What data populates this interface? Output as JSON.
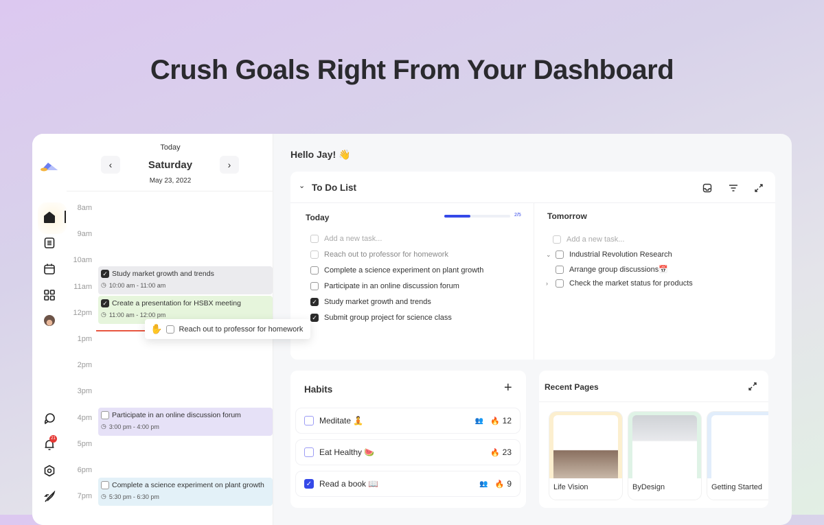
{
  "headline": "Crush Goals Right From Your Dashboard",
  "colors": {
    "accent": "#3549e8",
    "now_line": "#e8553e",
    "badge": "#e53935"
  },
  "sidebar": {
    "icons": [
      "logo",
      "home-icon",
      "document-icon",
      "calendar-icon",
      "grid-icon",
      "avatar",
      "chat-icon",
      "bell-icon",
      "gear-icon",
      "rocket-icon"
    ],
    "notification_count": "21"
  },
  "calendar": {
    "today_label": "Today",
    "day": "Saturday",
    "date": "May 23, 2022",
    "hours": [
      "8am",
      "9am",
      "10am",
      "11am",
      "12pm",
      "1pm",
      "2pm",
      "3pm",
      "4pm",
      "5pm",
      "6pm",
      "7pm"
    ],
    "events": [
      {
        "title": "Study market growth and trends",
        "time": "10:00 am - 11:00 am",
        "done": true,
        "color": "#ebebee"
      },
      {
        "title": "Create a presentation for HSBX meeting",
        "time": "11:00 am - 12:00 pm",
        "done": true,
        "color": "#e6f5dc"
      },
      {
        "title": "Participate in an online discussion forum",
        "time": "3:00 pm - 4:00 pm",
        "done": false,
        "color": "#e6e1f7"
      },
      {
        "title": "Complete a science experiment on plant growth",
        "time": "5:30 pm - 6:30 pm",
        "done": false,
        "color": "#e3f1f8"
      }
    ],
    "dragging": "Reach out to professor for homework"
  },
  "greeting": "Hello Jay! 👋",
  "todo": {
    "title": "To Do List",
    "today": {
      "label": "Today",
      "progress_text": "2/5",
      "progress": 0.4,
      "placeholder": "Add a new task...",
      "tasks": [
        {
          "text": "Reach out to professor for homework",
          "done": false,
          "faded": true
        },
        {
          "text": "Complete a science experiment on plant growth",
          "done": false
        },
        {
          "text": "Participate in an online discussion forum",
          "done": false
        },
        {
          "text": "Study market growth and trends",
          "done": true
        },
        {
          "text": "Submit group project for science class",
          "done": true
        }
      ]
    },
    "tomorrow": {
      "label": "Tomorrow",
      "placeholder": "Add a new task...",
      "tasks": [
        {
          "text": "Industrial Revolution Research",
          "chevron": "down"
        },
        {
          "text": "Arrange group discussions📅",
          "chevron": ""
        },
        {
          "text": "Check the market status for products",
          "chevron": "right"
        }
      ]
    }
  },
  "habits": {
    "title": "Habits",
    "items": [
      {
        "name": "Meditate 🧘",
        "streak": "12",
        "shared": true,
        "done": false
      },
      {
        "name": "Eat Healthy 🍉",
        "streak": "23",
        "shared": false,
        "done": false
      },
      {
        "name": "Read a book 📖",
        "streak": "9",
        "shared": true,
        "done": true
      }
    ]
  },
  "recent_pages": {
    "title": "Recent Pages",
    "pages": [
      {
        "name": "Life Vision",
        "color": "#fcefcf"
      },
      {
        "name": "ByDesign",
        "color": "#dff3e6"
      },
      {
        "name": "Getting Started",
        "color": "#e1edfb"
      }
    ]
  }
}
